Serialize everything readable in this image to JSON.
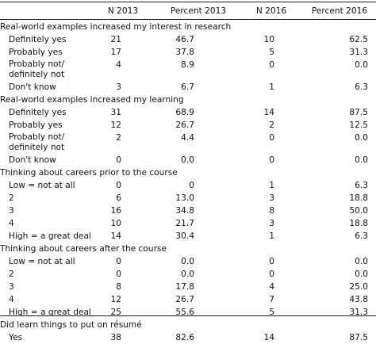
{
  "headers": [
    "N 2013",
    "Percent 2013",
    "N 2016",
    "Percent 2016"
  ],
  "sections": [
    {
      "title": "Real-world examples increased my interest in research",
      "rows": [
        {
          "label": "Definitely yes",
          "n2013": "21",
          "p2013": "46.7",
          "n2016": "10",
          "p2016": "62.5"
        },
        {
          "label": "Probably yes",
          "n2013": "17",
          "p2013": "37.8",
          "n2016": "5",
          "p2016": "31.3"
        },
        {
          "label": "Probably not/ definitely not",
          "n2013": "4",
          "p2013": "8.9",
          "n2016": "0",
          "p2016": "0.0"
        },
        {
          "label": "Don't know",
          "n2013": "3",
          "p2013": "6.7",
          "n2016": "1",
          "p2016": "6.3"
        }
      ]
    },
    {
      "title": "Real-world examples increased my learning",
      "rows": [
        {
          "label": "Definitely yes",
          "n2013": "31",
          "p2013": "68.9",
          "n2016": "14",
          "p2016": "87.5"
        },
        {
          "label": "Probably yes",
          "n2013": "12",
          "p2013": "26.7",
          "n2016": "2",
          "p2016": "12.5"
        },
        {
          "label": "Probably not/ definitely not",
          "n2013": "2",
          "p2013": "4.4",
          "n2016": "0",
          "p2016": "0.0"
        },
        {
          "label": "Don't know",
          "n2013": "0",
          "p2013": "0.0",
          "n2016": "0",
          "p2016": "0.0"
        }
      ]
    },
    {
      "title": "Thinking about careers prior to the course",
      "rows": [
        {
          "label": "Low = not at all",
          "n2013": "0",
          "p2013": "0",
          "n2016": "1",
          "p2016": "6.3"
        },
        {
          "label": "2",
          "n2013": "6",
          "p2013": "13.0",
          "n2016": "3",
          "p2016": "18.8"
        },
        {
          "label": "3",
          "n2013": "16",
          "p2013": "34.8",
          "n2016": "8",
          "p2016": "50.0"
        },
        {
          "label": "4",
          "n2013": "10",
          "p2013": "21.7",
          "n2016": "3",
          "p2016": "18.8"
        },
        {
          "label": "High = a great deal",
          "n2013": "14",
          "p2013": "30.4",
          "n2016": "1",
          "p2016": "6.3"
        }
      ]
    },
    {
      "title": "Thinking about careers after the course",
      "rows": [
        {
          "label": "Low = not at all",
          "n2013": "0",
          "p2013": "0.0",
          "n2016": "0",
          "p2016": "0.0"
        },
        {
          "label": "2",
          "n2013": "0",
          "p2013": "0.0",
          "n2016": "0",
          "p2016": "0.0"
        },
        {
          "label": "3",
          "n2013": "8",
          "p2013": "17.8",
          "n2016": "4",
          "p2016": "25.0"
        },
        {
          "label": "4",
          "n2013": "12",
          "p2013": "26.7",
          "n2016": "7",
          "p2016": "43.8"
        },
        {
          "label": "High = a great deal",
          "n2013": "25",
          "p2013": "55.6",
          "n2016": "5",
          "p2016": "31.3"
        }
      ]
    },
    {
      "title": "Did learn things to put on résumé",
      "rows": [
        {
          "label": "Yes",
          "n2013": "38",
          "p2013": "82.6",
          "n2016": "14",
          "p2016": "87.5"
        }
      ]
    }
  ]
}
